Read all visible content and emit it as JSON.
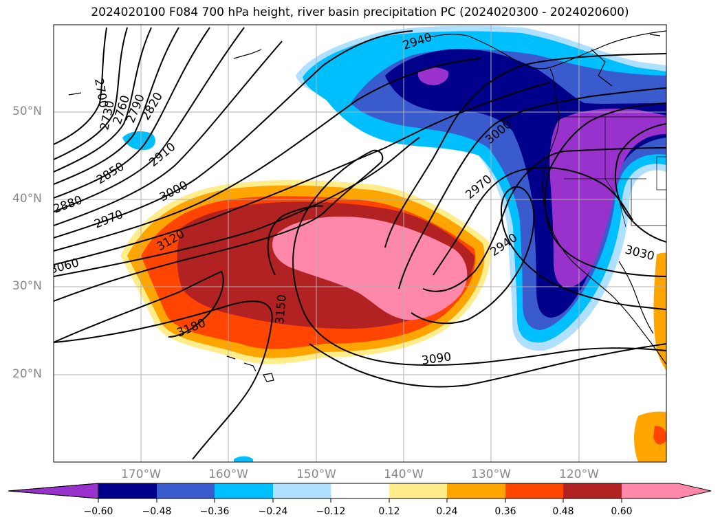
{
  "title": "2024020100 F084 700 hPa height, river basin precipitation PC (2024020300 - 2024020600)",
  "lat_labels": [
    "50°N",
    "40°N",
    "30°N",
    "20°N"
  ],
  "lon_labels": [
    "170°W",
    "160°W",
    "150°W",
    "140°W",
    "130°W",
    "120°W"
  ],
  "contour_labels": [
    "2700",
    "2730",
    "2760",
    "2790",
    "2820",
    "2850",
    "2880",
    "2910",
    "2940",
    "2940",
    "2970",
    "2970",
    "3000",
    "3000",
    "3030",
    "3060",
    "3090",
    "3120",
    "3150",
    "3180"
  ],
  "colorbar": {
    "colors": [
      "#9932CC",
      "#00008B",
      "#3A5BCD",
      "#00BFFF",
      "#B0E0FF",
      "#FFFFFF",
      "#FFEC8B",
      "#FFA500",
      "#FF4500",
      "#B22222",
      "#FF88AA"
    ],
    "ticks": [
      "−0.60",
      "−0.48",
      "−0.36",
      "−0.24",
      "−0.12",
      "0.12",
      "0.24",
      "0.36",
      "0.48",
      "0.60"
    ]
  },
  "colors": {
    "neg_strong": "#9932CC",
    "neg_2": "#00008B",
    "neg_3": "#3A5BCD",
    "neg_4": "#00BFFF",
    "neg_5": "#B0E0FF",
    "pos_1": "#FFEC8B",
    "pos_2": "#FFA500",
    "pos_3": "#FF4500",
    "pos_4": "#B22222",
    "pos_5": "#FF88AA"
  }
}
